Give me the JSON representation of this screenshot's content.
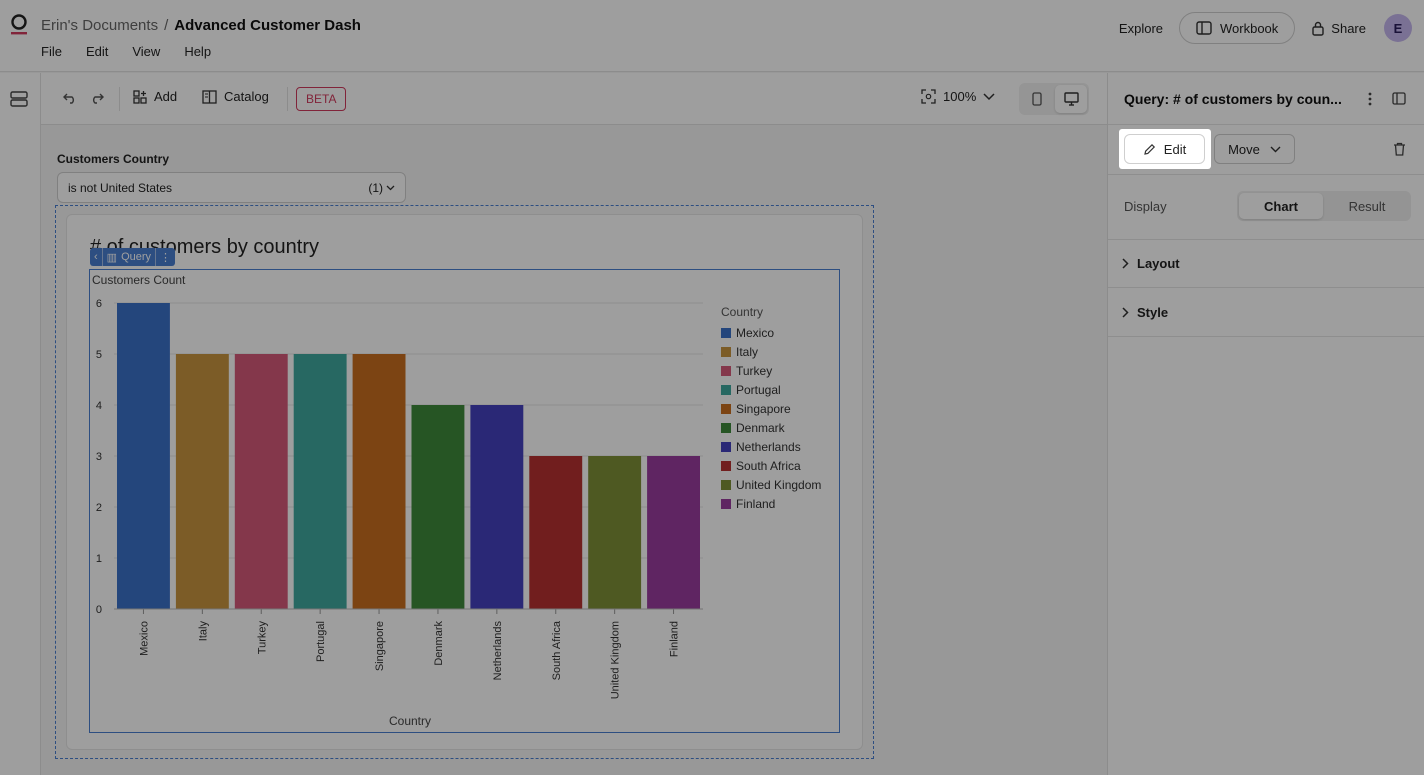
{
  "breadcrumb": {
    "parent": "Erin's Documents",
    "separator": "/",
    "current": "Advanced Customer Dash"
  },
  "menu": [
    "File",
    "Edit",
    "View",
    "Help"
  ],
  "header": {
    "explore": "Explore",
    "workbook": "Workbook",
    "share": "Share",
    "avatar_initial": "E"
  },
  "toolbar": {
    "add": "Add",
    "catalog": "Catalog",
    "beta": "BETA",
    "zoom": "100%"
  },
  "filter": {
    "label": "Customers Country",
    "value": "is not United States",
    "count": "(1)"
  },
  "query_tag": "Query",
  "panel": {
    "title": "Query: # of customers by coun...",
    "edit": "Edit",
    "move": "Move",
    "display_label": "Display",
    "display_options": [
      "Chart",
      "Result"
    ],
    "sections": [
      "Layout",
      "Style"
    ]
  },
  "colors": {
    "accent": "#4a7fd1",
    "beta": "#d13b5e"
  },
  "chart_data": {
    "type": "bar",
    "title": "# of customers by country",
    "ylabel": "Customers Count",
    "xlabel": "Country",
    "legend_title": "Country",
    "legend_position": "right",
    "ylim": [
      0,
      6
    ],
    "yticks": [
      0,
      1,
      2,
      3,
      4,
      5,
      6
    ],
    "grid": true,
    "categories": [
      "Mexico",
      "Italy",
      "Turkey",
      "Portugal",
      "Singapore",
      "Denmark",
      "Netherlands",
      "South Africa",
      "United Kingdom",
      "Finland"
    ],
    "values": [
      6,
      5,
      5,
      5,
      5,
      4,
      4,
      3,
      3,
      3
    ],
    "bar_colors": [
      "#3b72c9",
      "#c9953f",
      "#d65a7a",
      "#3fa89e",
      "#c96f1f",
      "#3e8a3a",
      "#4542bf",
      "#b63131",
      "#7f9038",
      "#9a3d9f"
    ]
  }
}
